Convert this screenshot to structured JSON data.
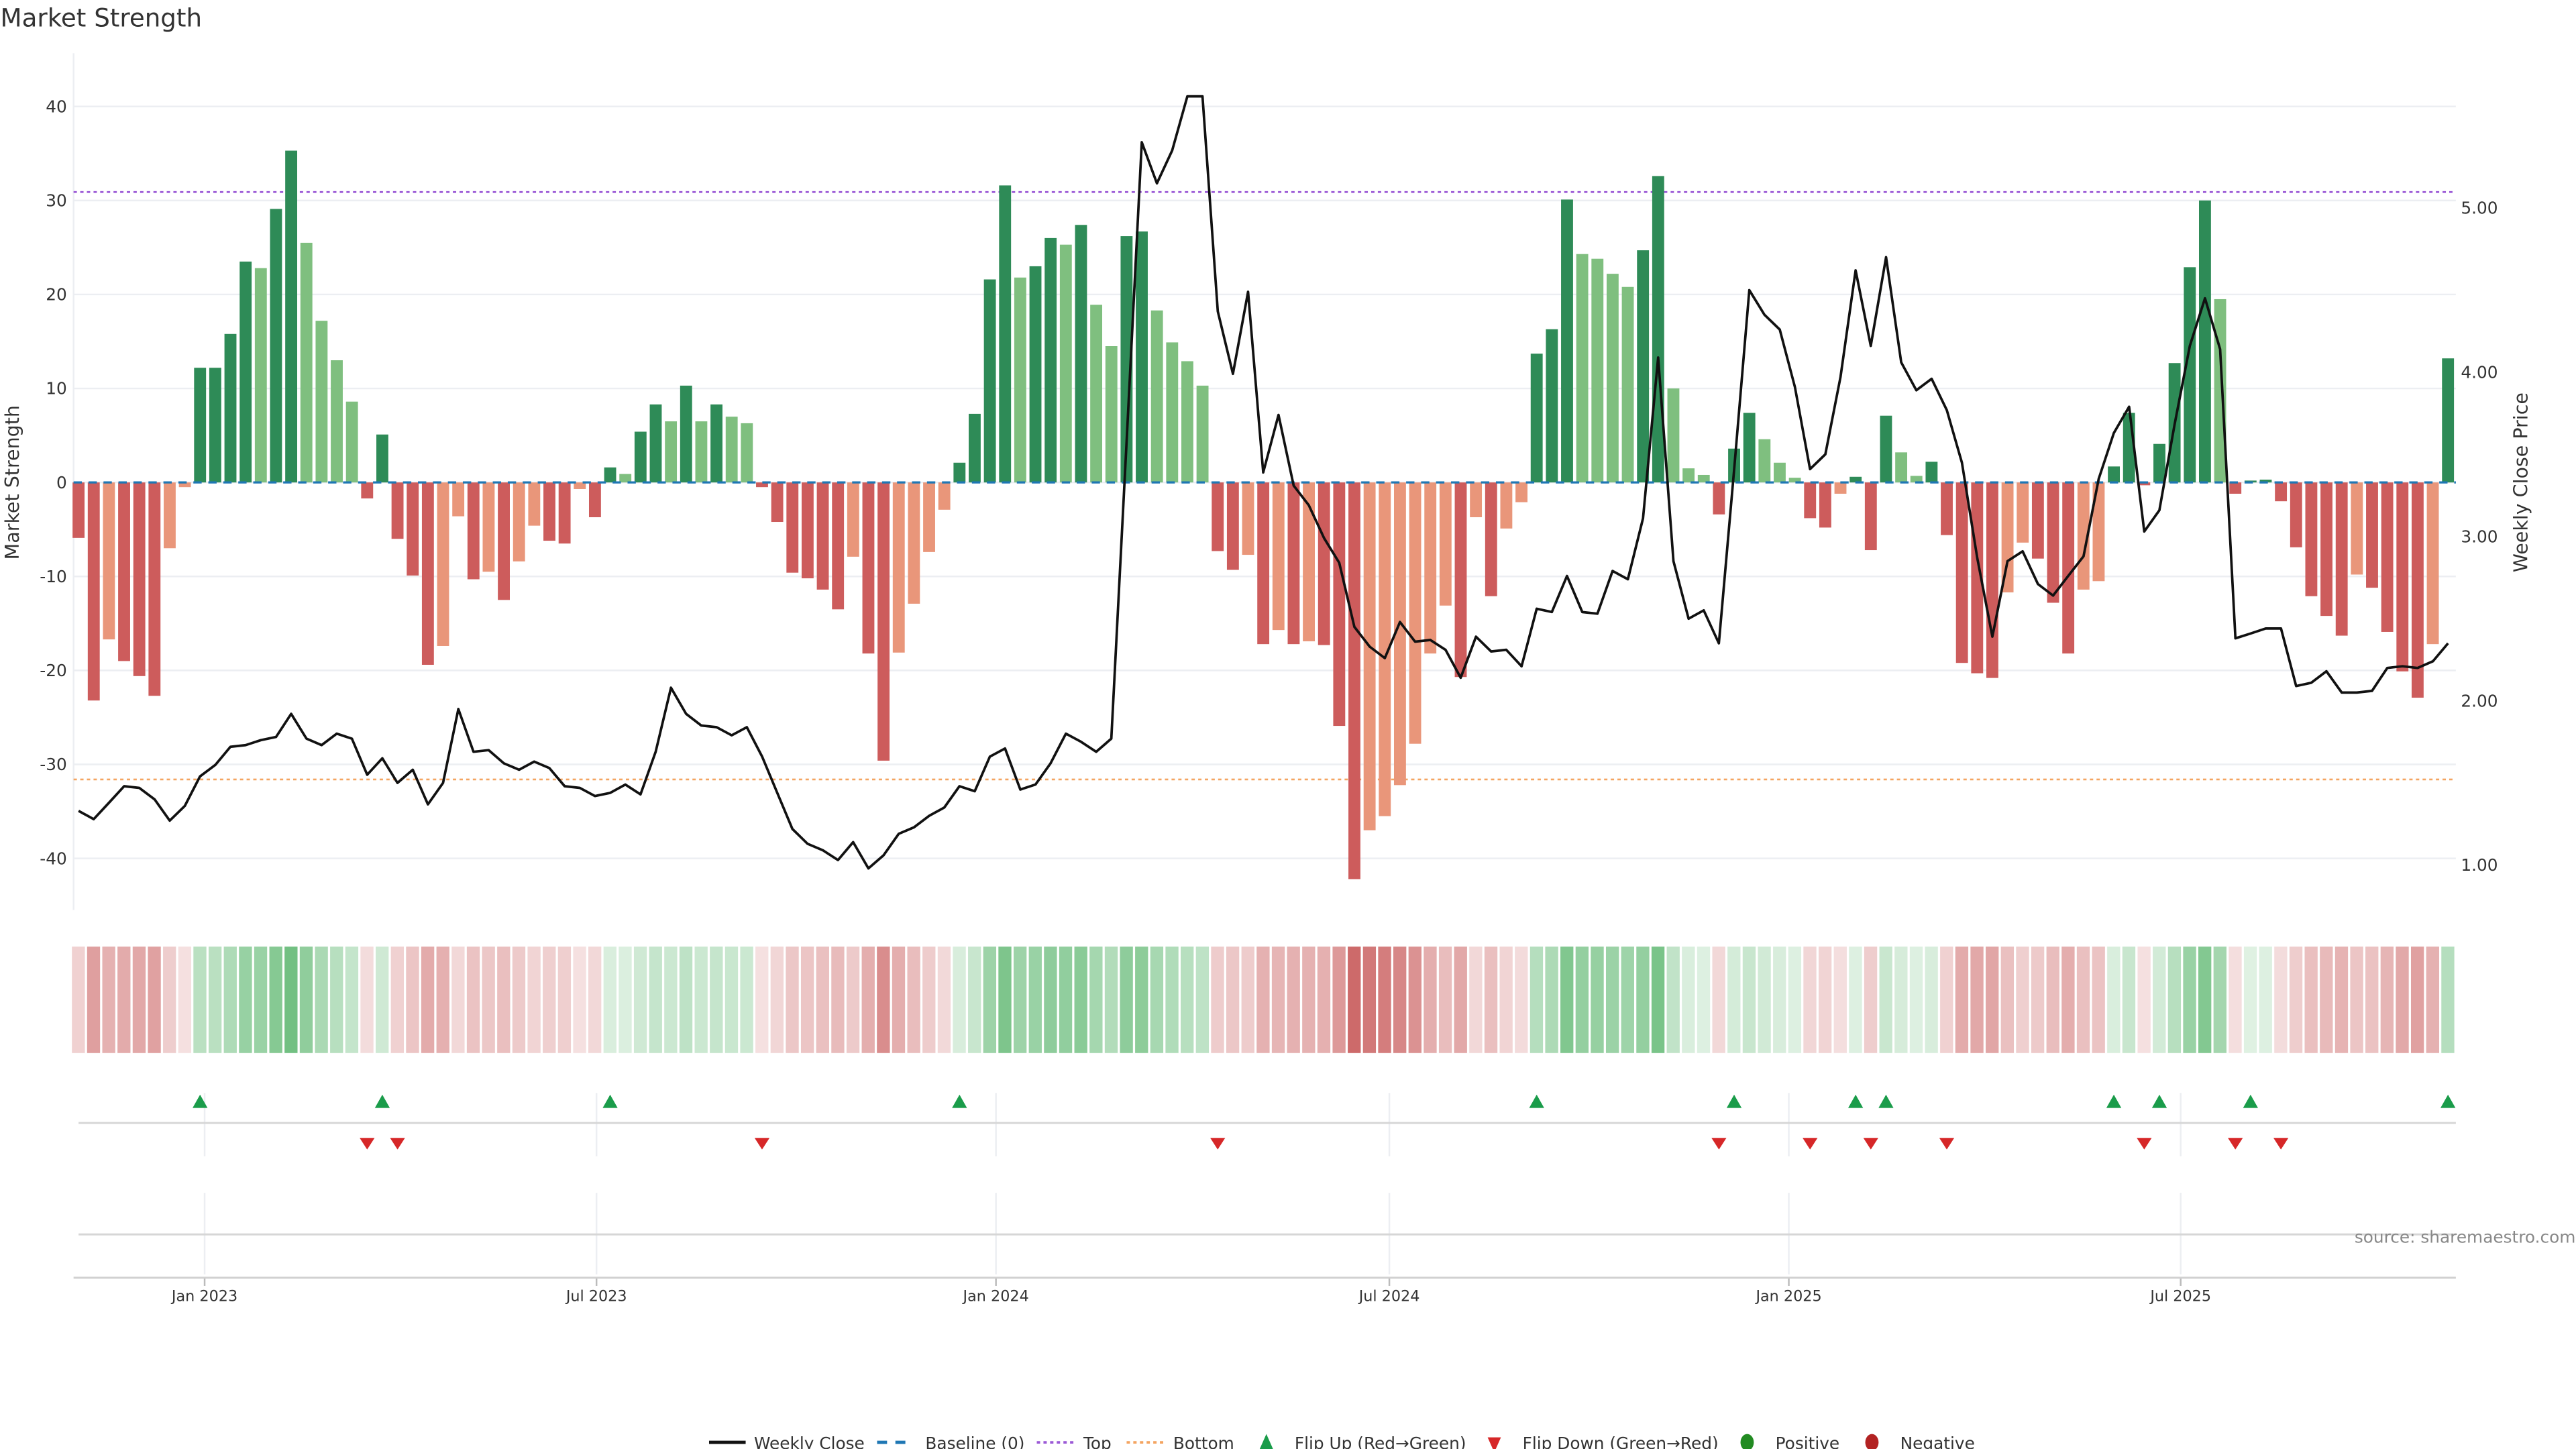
{
  "title": "Market Strength",
  "source": "source: sharemaestro.com",
  "chart_data": {
    "type": "bar",
    "title": "Market Strength",
    "ylabel": "Market Strength",
    "y2label": "Weekly Close Price",
    "ylim": [
      -45.5,
      45.7
    ],
    "y2lim": [
      0.75,
      5.98
    ],
    "yticks": [
      "-40",
      "-30",
      "-20",
      "-10",
      "0",
      "10",
      "20",
      "30",
      "40"
    ],
    "y2ticks": [
      "1.00",
      "2.00",
      "3.00",
      "4.00",
      "5.00"
    ],
    "xticks": [
      {
        "label": "Jan 2023",
        "week": 8.3
      },
      {
        "label": "Jul 2023",
        "week": 34.1
      },
      {
        "label": "Jan 2024",
        "week": 60.4
      },
      {
        "label": "Jul 2024",
        "week": 86.3
      },
      {
        "label": "Jan 2025",
        "week": 112.6
      },
      {
        "label": "Jul 2025",
        "week": 138.4
      }
    ],
    "top_level": 30.9,
    "bottom_level": -31.6,
    "baseline": 0,
    "grid": true,
    "legend_placement": "bottom-center",
    "strength": [
      -5.9,
      -23.2,
      -16.7,
      -19.0,
      -20.6,
      -22.7,
      -7.0,
      -0.5,
      12.2,
      12.2,
      15.8,
      23.5,
      22.8,
      29.1,
      35.3,
      25.5,
      17.2,
      13.0,
      8.6,
      -1.7,
      5.1,
      -6.0,
      -9.9,
      -19.4,
      -17.4,
      -3.6,
      -10.3,
      -9.5,
      -12.5,
      -8.4,
      -4.6,
      -6.2,
      -6.5,
      -0.7,
      -3.7,
      1.6,
      0.9,
      5.4,
      8.3,
      6.5,
      10.3,
      6.5,
      8.3,
      7.0,
      6.3,
      -0.5,
      -4.2,
      -9.6,
      -10.2,
      -11.4,
      -13.5,
      -7.9,
      -18.2,
      -29.6,
      -18.1,
      -12.9,
      -7.4,
      -2.9,
      2.1,
      7.3,
      21.6,
      31.6,
      21.8,
      23.0,
      26.0,
      25.3,
      27.4,
      18.9,
      14.5,
      26.2,
      26.7,
      18.3,
      14.9,
      12.9,
      10.3,
      -7.3,
      -9.3,
      -7.7,
      -17.2,
      -15.7,
      -17.2,
      -16.9,
      -17.3,
      -25.9,
      -42.2,
      -37.0,
      -35.5,
      -32.2,
      -27.8,
      -18.2,
      -13.1,
      -20.7,
      -3.7,
      -12.1,
      -4.9,
      -2.1,
      13.7,
      16.3,
      30.1,
      24.3,
      23.8,
      22.2,
      20.8,
      24.7,
      32.6,
      10.0,
      1.5,
      0.8,
      -3.4,
      3.6,
      7.4,
      4.6,
      2.1,
      0.5,
      -3.8,
      -4.8,
      -1.2,
      0.6,
      -7.2,
      7.1,
      3.2,
      0.7,
      2.2,
      -5.6,
      -19.2,
      -20.3,
      -20.8,
      -11.7,
      -6.4,
      -8.1,
      -12.8,
      -18.2,
      -11.4,
      -10.5,
      1.7,
      7.4,
      -0.3,
      4.1,
      12.7,
      22.9,
      30.0,
      19.5,
      -1.2,
      0.2,
      0.3,
      -2.0,
      -6.9,
      -12.1,
      -14.2,
      -16.3,
      -9.8,
      -11.2,
      -15.9,
      -20.1,
      -22.9,
      -17.2,
      13.2
    ],
    "weekly_close": [
      1.33,
      1.28,
      1.38,
      1.48,
      1.47,
      1.4,
      1.27,
      1.36,
      1.54,
      1.61,
      1.72,
      1.73,
      1.76,
      1.78,
      1.92,
      1.77,
      1.73,
      1.8,
      1.77,
      1.55,
      1.65,
      1.5,
      1.58,
      1.37,
      1.5,
      1.95,
      1.69,
      1.7,
      1.62,
      1.58,
      1.63,
      1.59,
      1.48,
      1.47,
      1.42,
      1.44,
      1.49,
      1.43,
      1.69,
      2.08,
      1.92,
      1.85,
      1.84,
      1.79,
      1.84,
      1.66,
      1.44,
      1.22,
      1.13,
      1.09,
      1.03,
      1.14,
      0.98,
      1.06,
      1.19,
      1.23,
      1.3,
      1.35,
      1.48,
      1.45,
      1.66,
      1.71,
      1.46,
      1.49,
      1.62,
      1.8,
      1.75,
      1.69,
      1.77,
      3.58,
      5.4,
      5.15,
      5.35,
      5.68,
      5.68,
      4.37,
      3.99,
      4.49,
      3.39,
      3.74,
      3.31,
      3.19,
      2.99,
      2.84,
      2.45,
      2.33,
      2.26,
      2.48,
      2.36,
      2.37,
      2.31,
      2.14,
      2.39,
      2.3,
      2.31,
      2.21,
      2.56,
      2.54,
      2.76,
      2.54,
      2.53,
      2.79,
      2.74,
      3.11,
      4.09,
      2.85,
      2.5,
      2.55,
      2.35,
      3.41,
      4.5,
      4.35,
      4.26,
      3.91,
      3.41,
      3.5,
      3.97,
      4.62,
      4.16,
      4.7,
      4.06,
      3.89,
      3.96,
      3.77,
      3.45,
      2.87,
      2.39,
      2.85,
      2.91,
      2.71,
      2.64,
      2.76,
      2.88,
      3.35,
      3.63,
      3.79,
      3.03,
      3.16,
      3.68,
      4.16,
      4.45,
      4.14,
      2.38,
      2.41,
      2.44,
      2.44,
      2.09,
      2.11,
      2.18,
      2.05,
      2.05,
      2.06,
      2.2,
      2.21,
      2.2,
      2.24,
      2.35
    ],
    "colors": {
      "pos_strong": "#2e8b57",
      "pos_weak": "#7fbf7f",
      "neg_strong": "#cd5c5c",
      "neg_weak": "#e9967a",
      "baseline": "#1f77b4",
      "top": "#9b59d6",
      "bottom": "#f4a460",
      "flip_up": "#1a9c4a",
      "flip_down": "#d62728",
      "positive": "#228b22",
      "negative": "#b22222",
      "line": "#111111"
    }
  },
  "legend": {
    "weekly_close": "Weekly Close",
    "baseline": "Baseline (0)",
    "top": "Top",
    "bottom": "Bottom",
    "flip_up": "Flip Up (Red→Green)",
    "flip_down": "Flip Down (Green→Red)",
    "positive": "Positive",
    "negative": "Negative"
  }
}
